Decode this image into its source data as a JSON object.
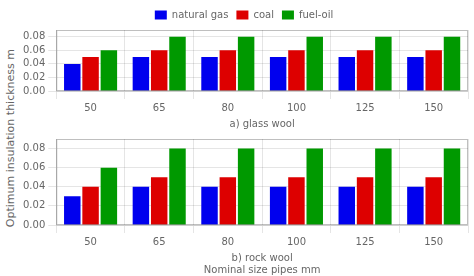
{
  "chart_data": [
    {
      "type": "bar",
      "categories": [
        "50",
        "65",
        "80",
        "100",
        "125",
        "150"
      ],
      "series": [
        {
          "name": "natural gas",
          "color": "#0000ee",
          "values": [
            0.04,
            0.05,
            0.05,
            0.05,
            0.05,
            0.05
          ]
        },
        {
          "name": "coal",
          "color": "#dd0000",
          "values": [
            0.05,
            0.06,
            0.06,
            0.06,
            0.06,
            0.06
          ]
        },
        {
          "name": "fuel-oil",
          "color": "#009900",
          "values": [
            0.06,
            0.08,
            0.08,
            0.08,
            0.08,
            0.08
          ]
        }
      ],
      "xlabel": "a) glass wool",
      "ylabel": "Optimum insulation thickness m",
      "ylim": [
        0,
        0.09
      ],
      "yticks": [
        {
          "value": 0,
          "label": "0.00"
        },
        0.02,
        0.04,
        0.06,
        0.08
      ],
      "grid": true,
      "legend": "top"
    },
    {
      "type": "bar",
      "categories": [
        "50",
        "65",
        "80",
        "100",
        "125",
        "150"
      ],
      "series": [
        {
          "name": "natural gas",
          "color": "#0000ee",
          "values": [
            0.03,
            0.04,
            0.04,
            0.04,
            0.04,
            0.04
          ]
        },
        {
          "name": "coal",
          "color": "#dd0000",
          "values": [
            0.04,
            0.05,
            0.05,
            0.05,
            0.05,
            0.05
          ]
        },
        {
          "name": "fuel-oil",
          "color": "#009900",
          "values": [
            0.06,
            0.08,
            0.08,
            0.08,
            0.08,
            0.08
          ]
        }
      ],
      "xlabel": "b) rock wool\nNominal size pipes mm",
      "ylim": [
        0,
        0.09
      ],
      "yticks": [
        {
          "value": 0,
          "label": "0.00"
        },
        0.02,
        0.04,
        0.06,
        0.08
      ],
      "grid": true
    }
  ]
}
